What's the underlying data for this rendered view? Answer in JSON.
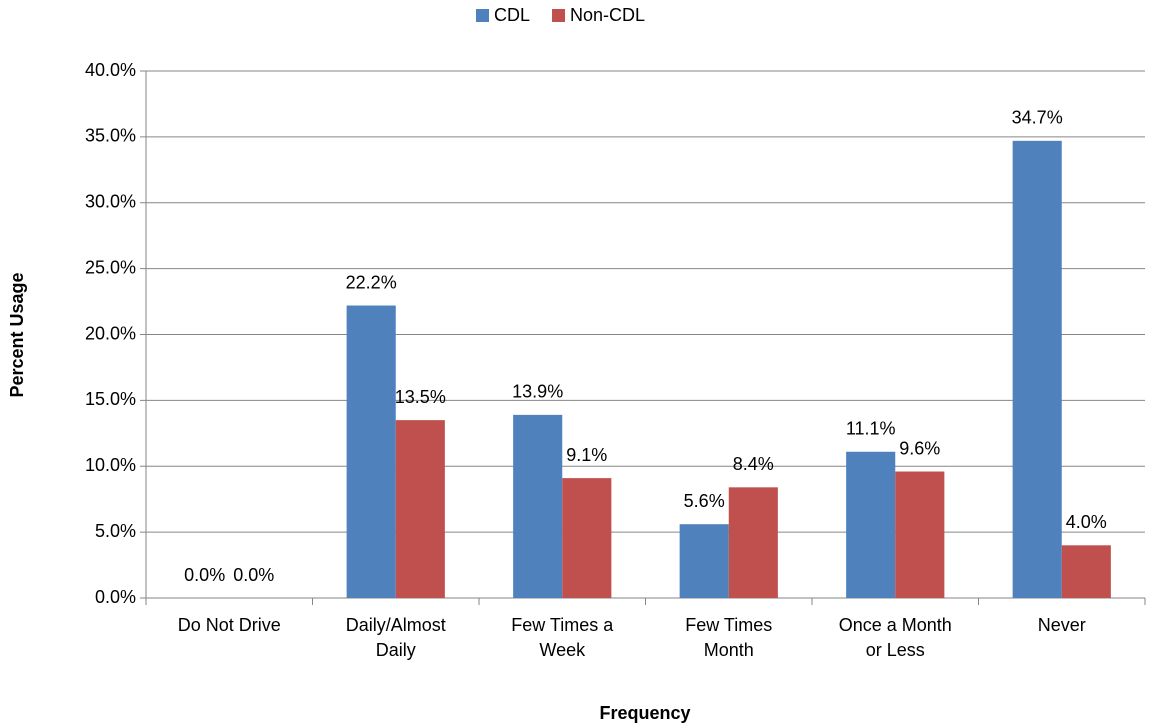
{
  "chart_data": {
    "type": "bar",
    "categories": [
      "Do Not Drive",
      "Daily/Almost\nDaily",
      "Few Times a\nWeek",
      "Few Times\nMonth",
      "Once a Month\nor Less",
      "Never"
    ],
    "series": [
      {
        "name": "CDL",
        "color": "#4f81bd",
        "values": [
          0,
          22.2,
          13.9,
          5.6,
          11.1,
          34.7
        ],
        "value_labels": [
          "0.0%",
          "22.2%",
          "13.9%",
          "5.6%",
          "11.1%",
          "34.7%"
        ]
      },
      {
        "name": "Non-CDL",
        "color": "#c0504d",
        "values": [
          0,
          13.5,
          9.1,
          8.4,
          9.6,
          4.0
        ],
        "value_labels": [
          "0.0%",
          "13.5%",
          "9.1%",
          "8.4%",
          "9.6%",
          "4.0%"
        ]
      }
    ],
    "ylim": [
      0,
      40
    ],
    "yticks": [
      {
        "value": 0,
        "label": "0.0%"
      },
      {
        "value": 5,
        "label": "5.0%"
      },
      {
        "value": 10,
        "label": "10.0%"
      },
      {
        "value": 15,
        "label": "15.0%"
      },
      {
        "value": 20,
        "label": "20.0%"
      },
      {
        "value": 25,
        "label": "25.0%"
      },
      {
        "value": 30,
        "label": "30.0%"
      },
      {
        "value": 35,
        "label": "35.0%"
      },
      {
        "value": 40,
        "label": "40.0%"
      }
    ],
    "y_label": "Percent Usage",
    "x_label": "Frequency",
    "grid": true,
    "legend": "top"
  }
}
